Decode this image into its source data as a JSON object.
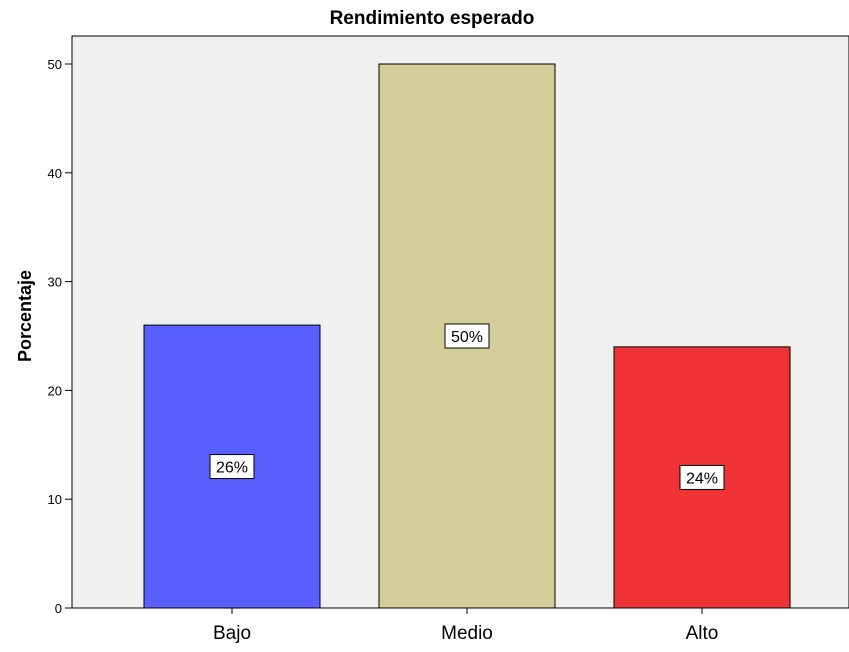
{
  "chart_data": {
    "type": "bar",
    "title": "Rendimiento esperado",
    "xlabel": "",
    "ylabel": "Porcentaje",
    "categories": [
      "Bajo",
      "Medio",
      "Alto"
    ],
    "values": [
      26,
      50,
      24
    ],
    "data_labels": [
      "26%",
      "50%",
      "24%"
    ],
    "ylim": [
      0,
      52
    ],
    "yticks": [
      0,
      10,
      20,
      30,
      40,
      50
    ],
    "colors": [
      "#5a5fff",
      "#d3ce98",
      "#ef3236"
    ],
    "plot_background": "#f0f0f0",
    "grid": false,
    "legend": "none"
  }
}
